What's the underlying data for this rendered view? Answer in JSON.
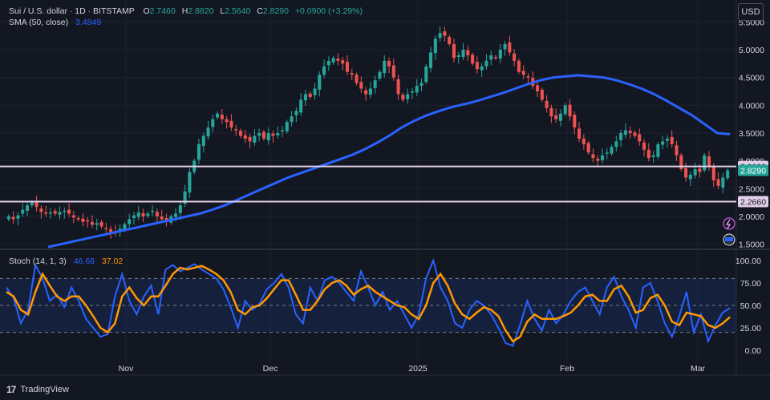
{
  "header": {
    "symbol": "Sui / U.S. dollar · 1D · BITSTAMP",
    "o_label": "O",
    "o": "2.7460",
    "h_label": "H",
    "h": "2.8820",
    "l_label": "L",
    "l": "2.5640",
    "c_label": "C",
    "c": "2.8290",
    "change": "+0.0900 (+3.29%)"
  },
  "sma_legend": {
    "label": "SMA (50, close)",
    "value": "3.4849"
  },
  "stoch_legend": {
    "label": "Stoch (14, 1, 3)",
    "k": "46.68",
    "d": "37.02"
  },
  "currency_button": "USD",
  "brand": "TradingView",
  "colors": {
    "up": "#26a69a",
    "down": "#ef5350",
    "sma": "#2962ff",
    "k": "#2962ff",
    "d": "#ff9800",
    "hline": "#e1cfe8",
    "bg": "#131722"
  },
  "price_axis": [
    "5.5000",
    "5.0000",
    "4.5000",
    "4.0000",
    "3.5000",
    "3.0000",
    "2.5000",
    "2.0000",
    "1.5000"
  ],
  "price_labels": {
    "resistance": "2.9000",
    "last": "2.8290",
    "support": "2.2660"
  },
  "stoch_axis": [
    "100.00",
    "75.00",
    "50.00",
    "25.00",
    "0.00"
  ],
  "time_axis": [
    "Nov",
    "Dec",
    "2025",
    "Feb",
    "Mar"
  ],
  "chart_data": [
    {
      "type": "candlestick",
      "title": "Sui / U.S. dollar · 1D · BITSTAMP",
      "ylim": [
        1.3,
        5.7
      ],
      "x_labels": [
        "Nov",
        "Dec",
        "2025",
        "Feb",
        "Mar"
      ],
      "close_path": [
        2.0,
        1.95,
        2.02,
        2.12,
        2.2,
        2.25,
        2.17,
        2.08,
        2.05,
        2.07,
        2.05,
        2.08,
        2.1,
        2.05,
        1.98,
        1.95,
        1.9,
        1.92,
        1.85,
        1.88,
        1.82,
        1.78,
        1.72,
        1.7,
        1.78,
        1.86,
        1.95,
        2.02,
        2.07,
        2.0,
        2.05,
        2.1,
        2.0,
        1.95,
        1.92,
        2.0,
        2.05,
        2.2,
        2.45,
        2.8,
        3.0,
        3.3,
        3.45,
        3.6,
        3.75,
        3.85,
        3.75,
        3.7,
        3.6,
        3.55,
        3.45,
        3.4,
        3.35,
        3.45,
        3.5,
        3.4,
        3.5,
        3.45,
        3.5,
        3.55,
        3.7,
        3.8,
        3.9,
        4.1,
        4.2,
        4.15,
        4.3,
        4.55,
        4.7,
        4.8,
        4.85,
        4.8,
        4.75,
        4.6,
        4.55,
        4.4,
        4.3,
        4.2,
        4.3,
        4.45,
        4.6,
        4.8,
        4.7,
        4.5,
        4.2,
        4.1,
        4.2,
        4.25,
        4.35,
        4.4,
        4.7,
        4.95,
        5.2,
        5.3,
        5.25,
        5.1,
        4.85,
        4.9,
        5.0,
        4.9,
        4.75,
        4.65,
        4.7,
        4.8,
        4.9,
        4.85,
        5.0,
        5.1,
        4.95,
        4.8,
        4.6,
        4.55,
        4.5,
        4.35,
        4.25,
        4.1,
        3.95,
        3.8,
        3.75,
        3.85,
        4.0,
        3.8,
        3.6,
        3.4,
        3.3,
        3.15,
        3.05,
        3.0,
        3.1,
        3.15,
        3.25,
        3.35,
        3.5,
        3.55,
        3.5,
        3.45,
        3.35,
        3.2,
        3.05,
        3.1,
        3.3,
        3.35,
        3.4,
        3.3,
        3.1,
        2.85,
        2.7,
        2.75,
        2.85,
        2.8,
        3.1,
        2.9,
        2.65,
        2.55,
        2.7,
        2.83
      ],
      "sma": {
        "name": "SMA (50, close)",
        "path": [
          1.45,
          1.5,
          1.55,
          1.6,
          1.65,
          1.7,
          1.75,
          1.8,
          1.85,
          1.9,
          1.95,
          2.0,
          2.05,
          2.12,
          2.2,
          2.3,
          2.4,
          2.5,
          2.6,
          2.7,
          2.78,
          2.86,
          2.94,
          3.02,
          3.1,
          3.2,
          3.32,
          3.45,
          3.6,
          3.72,
          3.82,
          3.9,
          3.97,
          4.02,
          4.08,
          4.15,
          4.22,
          4.3,
          4.38,
          4.45,
          4.5,
          4.52,
          4.54,
          4.52,
          4.5,
          4.45,
          4.38,
          4.3,
          4.2,
          4.08,
          3.95,
          3.82,
          3.66,
          3.5,
          3.48
        ]
      },
      "horizontal_levels": [
        2.9,
        2.266
      ]
    },
    {
      "type": "line",
      "title": "Stoch (14, 1, 3)",
      "ylim": [
        -10,
        110
      ],
      "bands": [
        20,
        50,
        80
      ],
      "series": [
        {
          "name": "%K",
          "values": [
            70,
            58,
            30,
            45,
            95,
            80,
            55,
            62,
            48,
            70,
            55,
            35,
            25,
            15,
            18,
            60,
            85,
            55,
            40,
            60,
            72,
            40,
            90,
            95,
            88,
            92,
            96,
            90,
            85,
            80,
            68,
            48,
            25,
            55,
            45,
            52,
            68,
            75,
            85,
            70,
            40,
            30,
            70,
            55,
            78,
            82,
            75,
            65,
            55,
            88,
            70,
            50,
            65,
            45,
            55,
            40,
            25,
            40,
            80,
            100,
            70,
            55,
            30,
            25,
            45,
            55,
            50,
            40,
            25,
            8,
            5,
            28,
            55,
            35,
            22,
            45,
            30,
            40,
            55,
            65,
            70,
            55,
            40,
            70,
            82,
            60,
            45,
            25,
            70,
            75,
            55,
            30,
            15,
            38,
            65,
            20,
            40,
            10,
            28,
            42,
            47
          ]
        },
        {
          "name": "%D",
          "values": [
            65,
            60,
            45,
            40,
            65,
            85,
            72,
            60,
            55,
            60,
            60,
            50,
            38,
            25,
            20,
            30,
            60,
            70,
            58,
            50,
            60,
            60,
            72,
            85,
            92,
            90,
            92,
            94,
            90,
            85,
            78,
            65,
            45,
            40,
            48,
            50,
            58,
            68,
            78,
            78,
            62,
            45,
            45,
            55,
            68,
            75,
            78,
            72,
            62,
            68,
            72,
            65,
            60,
            55,
            50,
            48,
            40,
            35,
            50,
            75,
            85,
            72,
            52,
            40,
            35,
            42,
            48,
            45,
            38,
            22,
            10,
            15,
            32,
            40,
            35,
            35,
            35,
            38,
            42,
            50,
            60,
            62,
            55,
            55,
            68,
            72,
            60,
            42,
            45,
            58,
            62,
            50,
            32,
            28,
            42,
            40,
            38,
            28,
            25,
            30,
            37
          ]
        }
      ]
    }
  ]
}
